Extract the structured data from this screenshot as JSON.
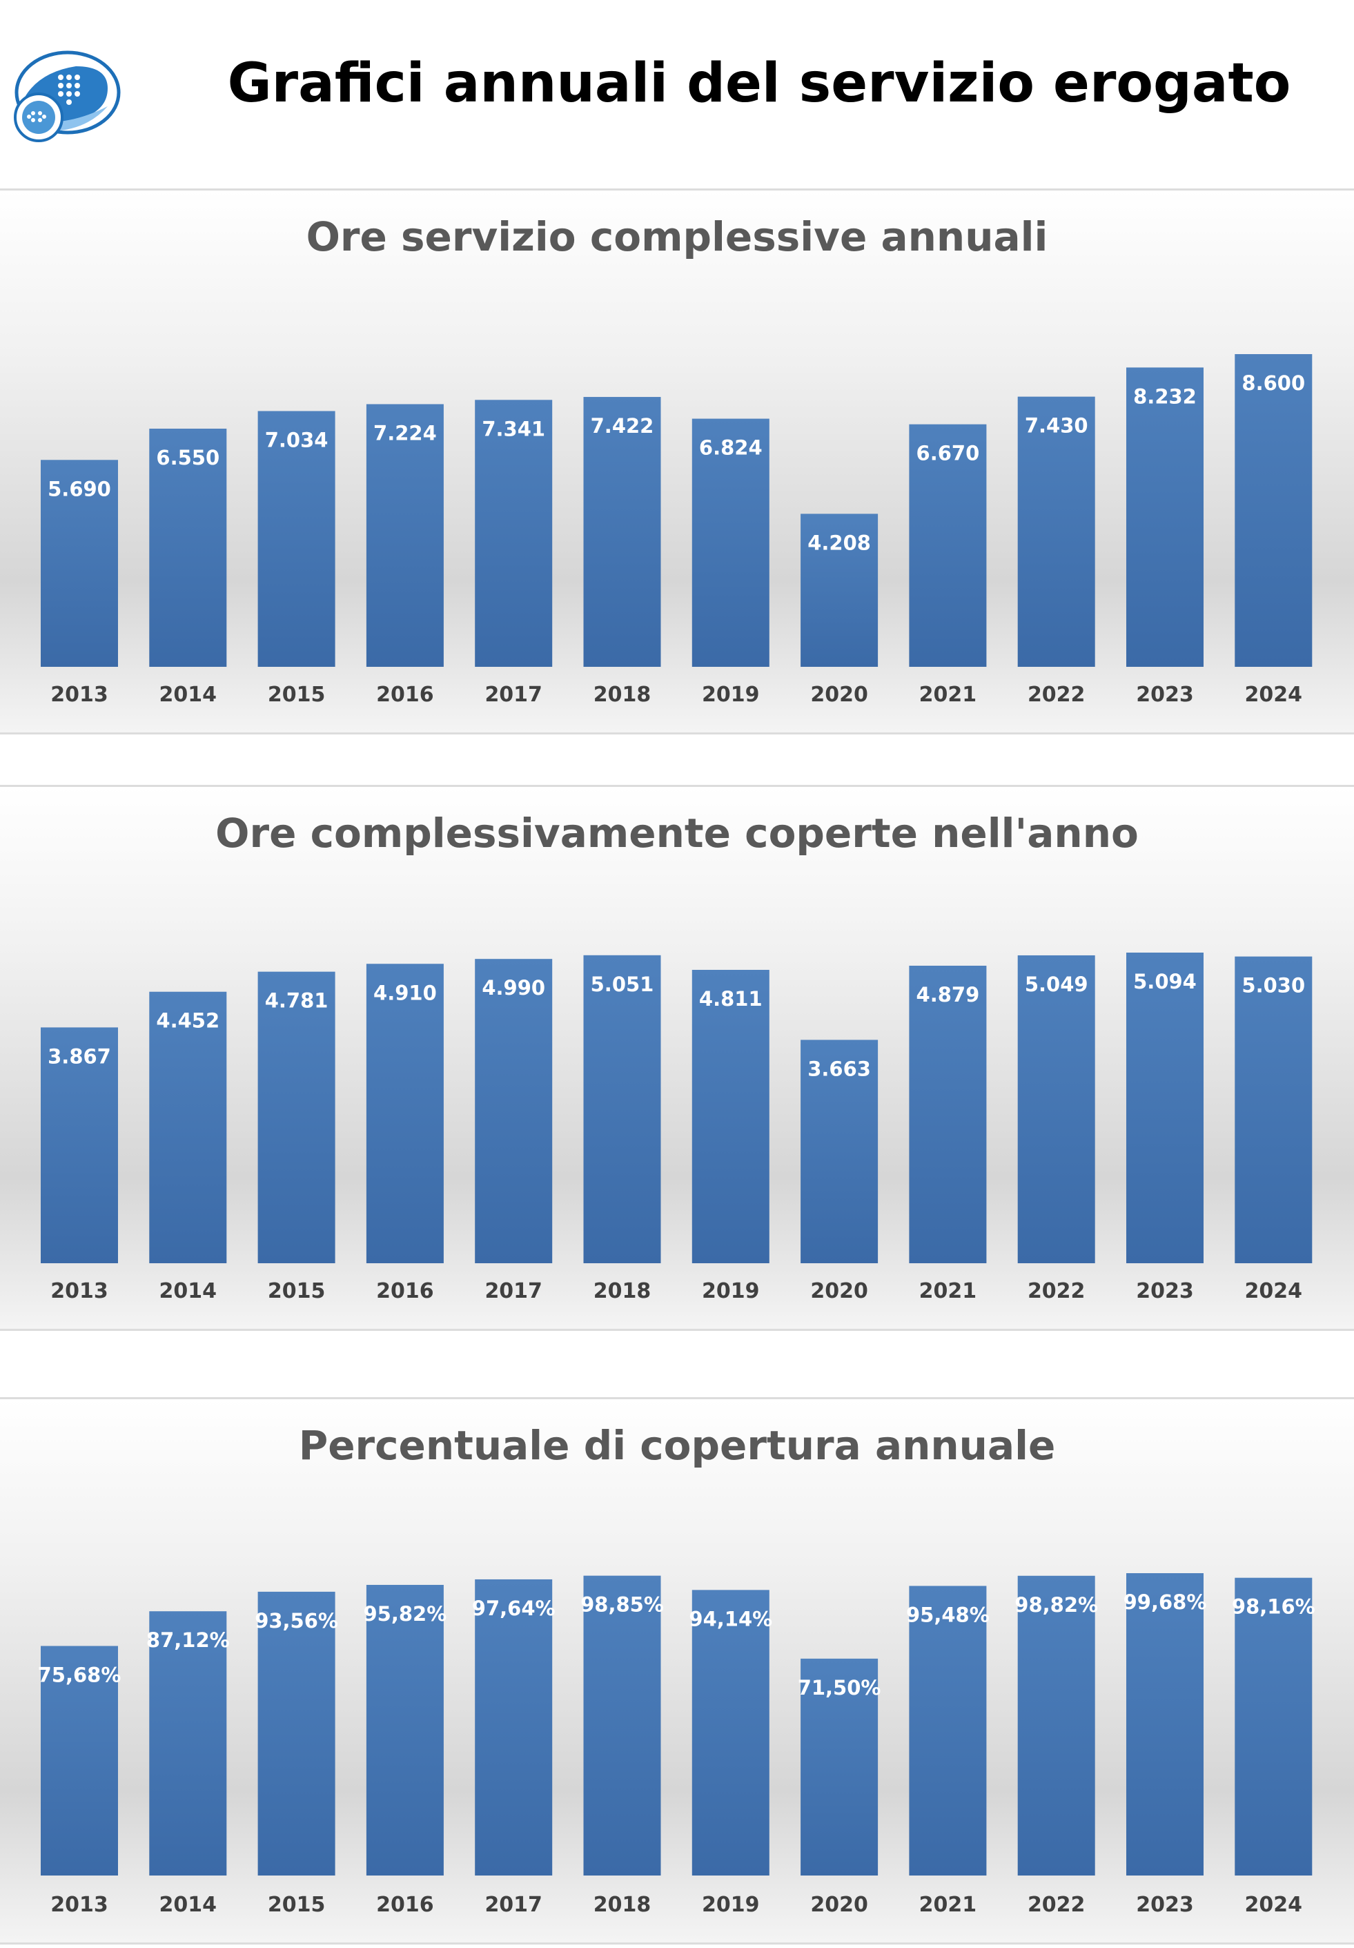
{
  "title": "Grafici annuali del servizio erogato",
  "logo": {
    "icon": "phone-handset-logo-icon",
    "colors": [
      "#1d6fb8",
      "#4a97d6",
      "#ffffff"
    ]
  },
  "colors": {
    "bar_top": "#4f81bd",
    "bar_bottom": "#3b6aa7",
    "label": "#ffffff",
    "axis_text": "#404040"
  },
  "chart_data": [
    {
      "type": "bar",
      "title": "Ore servizio complessive annuali",
      "categories": [
        "2013",
        "2014",
        "2015",
        "2016",
        "2017",
        "2018",
        "2019",
        "2020",
        "2021",
        "2022",
        "2023",
        "2024"
      ],
      "values": [
        5690,
        6550,
        7034,
        7224,
        7341,
        7422,
        6824,
        4208,
        6670,
        7430,
        8232,
        8600
      ],
      "labels": [
        "5.690",
        "6.550",
        "7.034",
        "7.224",
        "7.341",
        "7.422",
        "6.824",
        "4.208",
        "6.670",
        "7.430",
        "8.232",
        "8.600"
      ],
      "ylim": [
        0,
        8600
      ],
      "grid": false,
      "legend": false
    },
    {
      "type": "bar",
      "title": "Ore complessivamente coperte nell'anno",
      "categories": [
        "2013",
        "2014",
        "2015",
        "2016",
        "2017",
        "2018",
        "2019",
        "2020",
        "2021",
        "2022",
        "2023",
        "2024"
      ],
      "values": [
        3867,
        4452,
        4781,
        4910,
        4990,
        5051,
        4811,
        3663,
        4879,
        5049,
        5094,
        5030
      ],
      "labels": [
        "3.867",
        "4.452",
        "4.781",
        "4.910",
        "4.990",
        "5.051",
        "4.811",
        "3.663",
        "4.879",
        "5.049",
        "5.094",
        "5.030"
      ],
      "ylim": [
        0,
        5094
      ],
      "grid": false,
      "legend": false
    },
    {
      "type": "bar",
      "title": "Percentuale di copertura annuale",
      "categories": [
        "2013",
        "2014",
        "2015",
        "2016",
        "2017",
        "2018",
        "2019",
        "2020",
        "2021",
        "2022",
        "2023",
        "2024"
      ],
      "values": [
        75.68,
        87.12,
        93.56,
        95.82,
        97.64,
        98.85,
        94.14,
        71.5,
        95.48,
        98.82,
        99.68,
        98.16
      ],
      "labels": [
        "75,68%",
        "87,12%",
        "93,56%",
        "95,82%",
        "97,64%",
        "98,85%",
        "94,14%",
        "71,50%",
        "95,48%",
        "98,82%",
        "99,68%",
        "98,16%"
      ],
      "ylim": [
        0,
        99.68
      ],
      "grid": false,
      "legend": false
    }
  ]
}
